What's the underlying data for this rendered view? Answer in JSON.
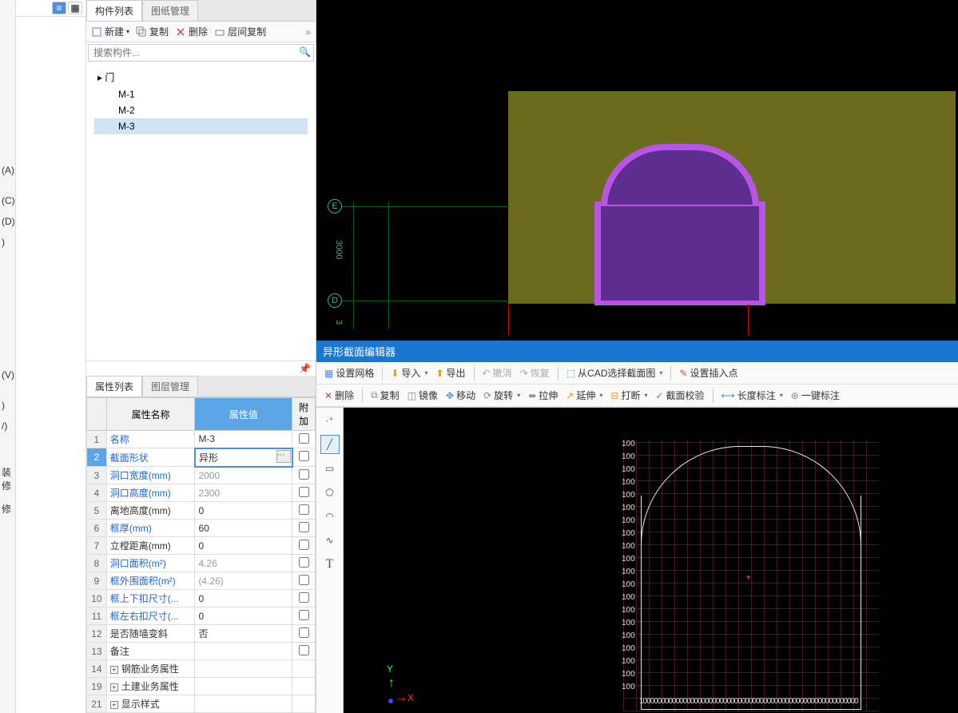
{
  "left_nav": {
    "items": [
      "(A)",
      "",
      "(C)",
      "(D)",
      ")",
      "",
      "",
      "",
      "",
      "",
      "",
      "",
      "(V)",
      "",
      ")",
      "",
      "/)",
      "",
      "",
      "装修",
      "修"
    ]
  },
  "component_panel": {
    "tabs": {
      "list": "构件列表",
      "drawings": "图纸管理"
    },
    "toolbar": {
      "new": "新建",
      "copy": "复制",
      "delete": "删除",
      "floor_copy": "层间复制"
    },
    "search_placeholder": "搜索构件...",
    "tree": {
      "root": "门",
      "items": [
        "M-1",
        "M-2",
        "M-3"
      ],
      "selected_index": 2
    }
  },
  "property_panel": {
    "tabs": {
      "props": "属性列表",
      "layers": "图层管理"
    },
    "headers": {
      "name": "属性名称",
      "value": "属性值",
      "extra": "附加"
    },
    "rows": [
      {
        "n": 1,
        "name": "名称",
        "value": "M-3",
        "link": true,
        "chk": true
      },
      {
        "n": 2,
        "name": "截面形状",
        "value": "异形",
        "link": true,
        "chk": true,
        "editing": true
      },
      {
        "n": 3,
        "name": "洞口宽度(mm)",
        "value": "2000",
        "link": true,
        "gray": true,
        "chk": true
      },
      {
        "n": 4,
        "name": "洞口高度(mm)",
        "value": "2300",
        "link": true,
        "gray": true,
        "chk": true
      },
      {
        "n": 5,
        "name": "离地高度(mm)",
        "value": "0",
        "chk": true
      },
      {
        "n": 6,
        "name": "框厚(mm)",
        "value": "60",
        "link": true,
        "chk": true
      },
      {
        "n": 7,
        "name": "立樘距离(mm)",
        "value": "0",
        "chk": true
      },
      {
        "n": 8,
        "name": "洞口面积(m²)",
        "value": "4.26",
        "link": true,
        "gray": true,
        "chk": false
      },
      {
        "n": 9,
        "name": "框外围面积(m²)",
        "value": "(4.26)",
        "link": true,
        "gray": true,
        "chk": true
      },
      {
        "n": 10,
        "name": "框上下扣尺寸(...",
        "value": "0",
        "link": true,
        "chk": true
      },
      {
        "n": 11,
        "name": "框左右扣尺寸(...",
        "value": "0",
        "link": true,
        "chk": true
      },
      {
        "n": 12,
        "name": "是否随墙变斜",
        "value": "否",
        "chk": true
      },
      {
        "n": 13,
        "name": "备注",
        "value": "",
        "chk": true
      },
      {
        "n": 14,
        "name": "钢筋业务属性",
        "value": "",
        "expand": true
      },
      {
        "n": 19,
        "name": "土建业务属性",
        "value": "",
        "expand": true
      },
      {
        "n": 21,
        "name": "显示样式",
        "value": "",
        "expand": true
      }
    ]
  },
  "viewport": {
    "wall_color": "#6b6b1e",
    "door_frame_color": "#b855e6",
    "door_fill_color": "#5d2d8f",
    "grid_color": "#0a5d0a",
    "grid_labels": {
      "E": "E",
      "D": "D"
    },
    "dimension": "3000",
    "dim2": "3"
  },
  "section_editor": {
    "title": "异形截面编辑器",
    "toolbar1": {
      "set_grid": "设置网格",
      "import": "导入",
      "export": "导出",
      "undo": "撤消",
      "redo": "恢复",
      "cad_select": "从CAD选择截面图",
      "set_insert": "设置插入点"
    },
    "toolbar2": {
      "delete": "删除",
      "copy": "复制",
      "mirror": "镜像",
      "move": "移动",
      "rotate": "旋转",
      "stretch": "拉伸",
      "extend": "延伸",
      "break": "打断",
      "check": "截面校验",
      "dim_length": "长度标注",
      "dim_all": "一键标注"
    },
    "draw_tools": [
      "point",
      "line",
      "rect",
      "polygon",
      "arc",
      "spline",
      "text"
    ],
    "grid": {
      "cell_value": "100",
      "rows": 20,
      "cols": 20,
      "grid_color": "#4d1820",
      "outline_color": "#e8e8e8",
      "center_marker": "*"
    },
    "axis": {
      "x": "X",
      "y": "Y"
    }
  }
}
